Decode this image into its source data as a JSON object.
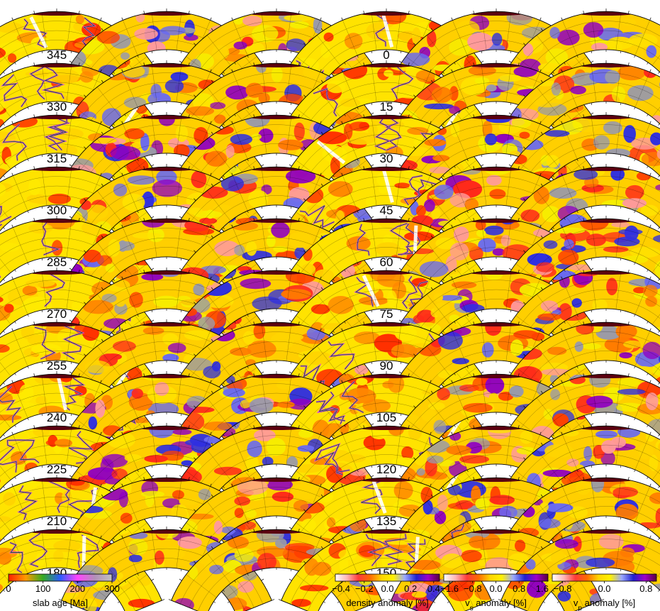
{
  "figure": {
    "left_ages": [
      "345",
      "330",
      "315",
      "300",
      "285",
      "270",
      "255",
      "240",
      "225",
      "210",
      "180"
    ],
    "right_ages": [
      "0",
      "15",
      "30",
      "45",
      "60",
      "75",
      "90",
      "105",
      "120",
      "135",
      "150"
    ],
    "colorbars": [
      {
        "id": "slab-age",
        "label": "slab age [Ma]",
        "ticks": [
          "0",
          "100",
          "200",
          "300"
        ],
        "tick_values": [
          0,
          100,
          200,
          300
        ],
        "range": [
          0,
          300
        ],
        "colors": [
          "#ff2000",
          "#ff9a00",
          "#33aa22",
          "#2c5cff",
          "#ff44ff",
          "#b28fb8",
          "#c0c0c0"
        ]
      },
      {
        "id": "density",
        "label": "density anomaly [%]",
        "ticks": [
          "−0.4",
          "−0.2",
          "0.0",
          "0.2",
          "0.4"
        ],
        "tick_values": [
          -0.4,
          -0.2,
          0.0,
          0.2,
          0.4
        ],
        "range": [
          -0.45,
          0.45
        ],
        "colors": [
          "#ffffff",
          "#ffb7b7",
          "#ff3a3a",
          "#ff6a00",
          "#ffd500",
          "#fff100",
          "#9aa8ff",
          "#2020d0",
          "#a000c8",
          "#5a0040"
        ]
      },
      {
        "id": "vs",
        "label": "v",
        "label_sub": "s",
        "label_rest": " anomaly [%]",
        "ticks": [
          "−1.6",
          "−0.8",
          "0.0",
          "0.8",
          "1.6"
        ],
        "tick_values": [
          -1.6,
          -0.8,
          0.0,
          0.8,
          1.6
        ],
        "range": [
          -1.8,
          1.8
        ],
        "colors": [
          "#ffffff",
          "#ffb7b7",
          "#ff3a3a",
          "#ff6a00",
          "#ffd500",
          "#fff100",
          "#9aa8ff",
          "#2020d0",
          "#a000c8",
          "#5a0040"
        ]
      },
      {
        "id": "vp",
        "label": "v",
        "label_sub": "p",
        "label_rest": " anomaly [%]",
        "ticks": [
          "−0.8",
          "0.0",
          "0.8"
        ],
        "tick_values": [
          -0.8,
          0.0,
          0.8
        ],
        "range": [
          -1.0,
          1.0
        ],
        "colors": [
          "#ffffff",
          "#ffb7b7",
          "#ff3a3a",
          "#ff6a00",
          "#ffd500",
          "#fff100",
          "#9aa8ff",
          "#2020d0",
          "#a000c8",
          "#5a0040"
        ]
      }
    ]
  }
}
